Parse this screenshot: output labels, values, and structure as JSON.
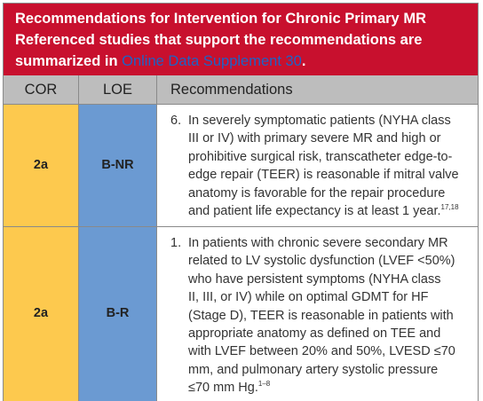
{
  "header": {
    "line1": "Recommendations for Intervention for Chronic Primary MR",
    "line2": "Referenced studies that support the recommendations are",
    "line3_prefix": "summarized in ",
    "link": "Online Data Supplement 30",
    "line3_suffix": "."
  },
  "columns": {
    "cor": "COR",
    "loe": "LOE",
    "recommendations": "Recommendations"
  },
  "rows": [
    {
      "cor": "2a",
      "loe": "B-NR",
      "number": "6.",
      "lines": [
        "In severely symptomatic patients (NYHA class",
        "III or IV) with primary severe MR and high or",
        "prohibitive surgical risk, transcatheter edge-to-",
        "edge repair (TEER) is reasonable if mitral valve",
        "anatomy is favorable for the repair procedure",
        "and patient life expectancy is at least 1 year."
      ],
      "refs": "17,18"
    },
    {
      "cor": "2a",
      "loe": "B-R",
      "number": "1.",
      "lines": [
        "In patients with chronic severe secondary MR",
        "related to LV systolic dysfunction (LVEF <50%)",
        "who have persistent symptoms (NYHA class",
        "II, III, or IV) while on optimal GDMT for HF",
        "(Stage D), TEER is reasonable in patients with",
        "appropriate anatomy as defined on TEE and",
        "with LVEF between 20% and 50%, LVESD ≤70",
        "mm, and pulmonary artery systolic pressure",
        "≤70 mm Hg."
      ],
      "refs": "1–8"
    }
  ],
  "colors": {
    "header_bg": "#c8102e",
    "cor_bg": "#fdc94e",
    "loe_bg": "#6b9ad2",
    "column_header_bg": "#bdbdbd",
    "link": "#1c63c7"
  }
}
